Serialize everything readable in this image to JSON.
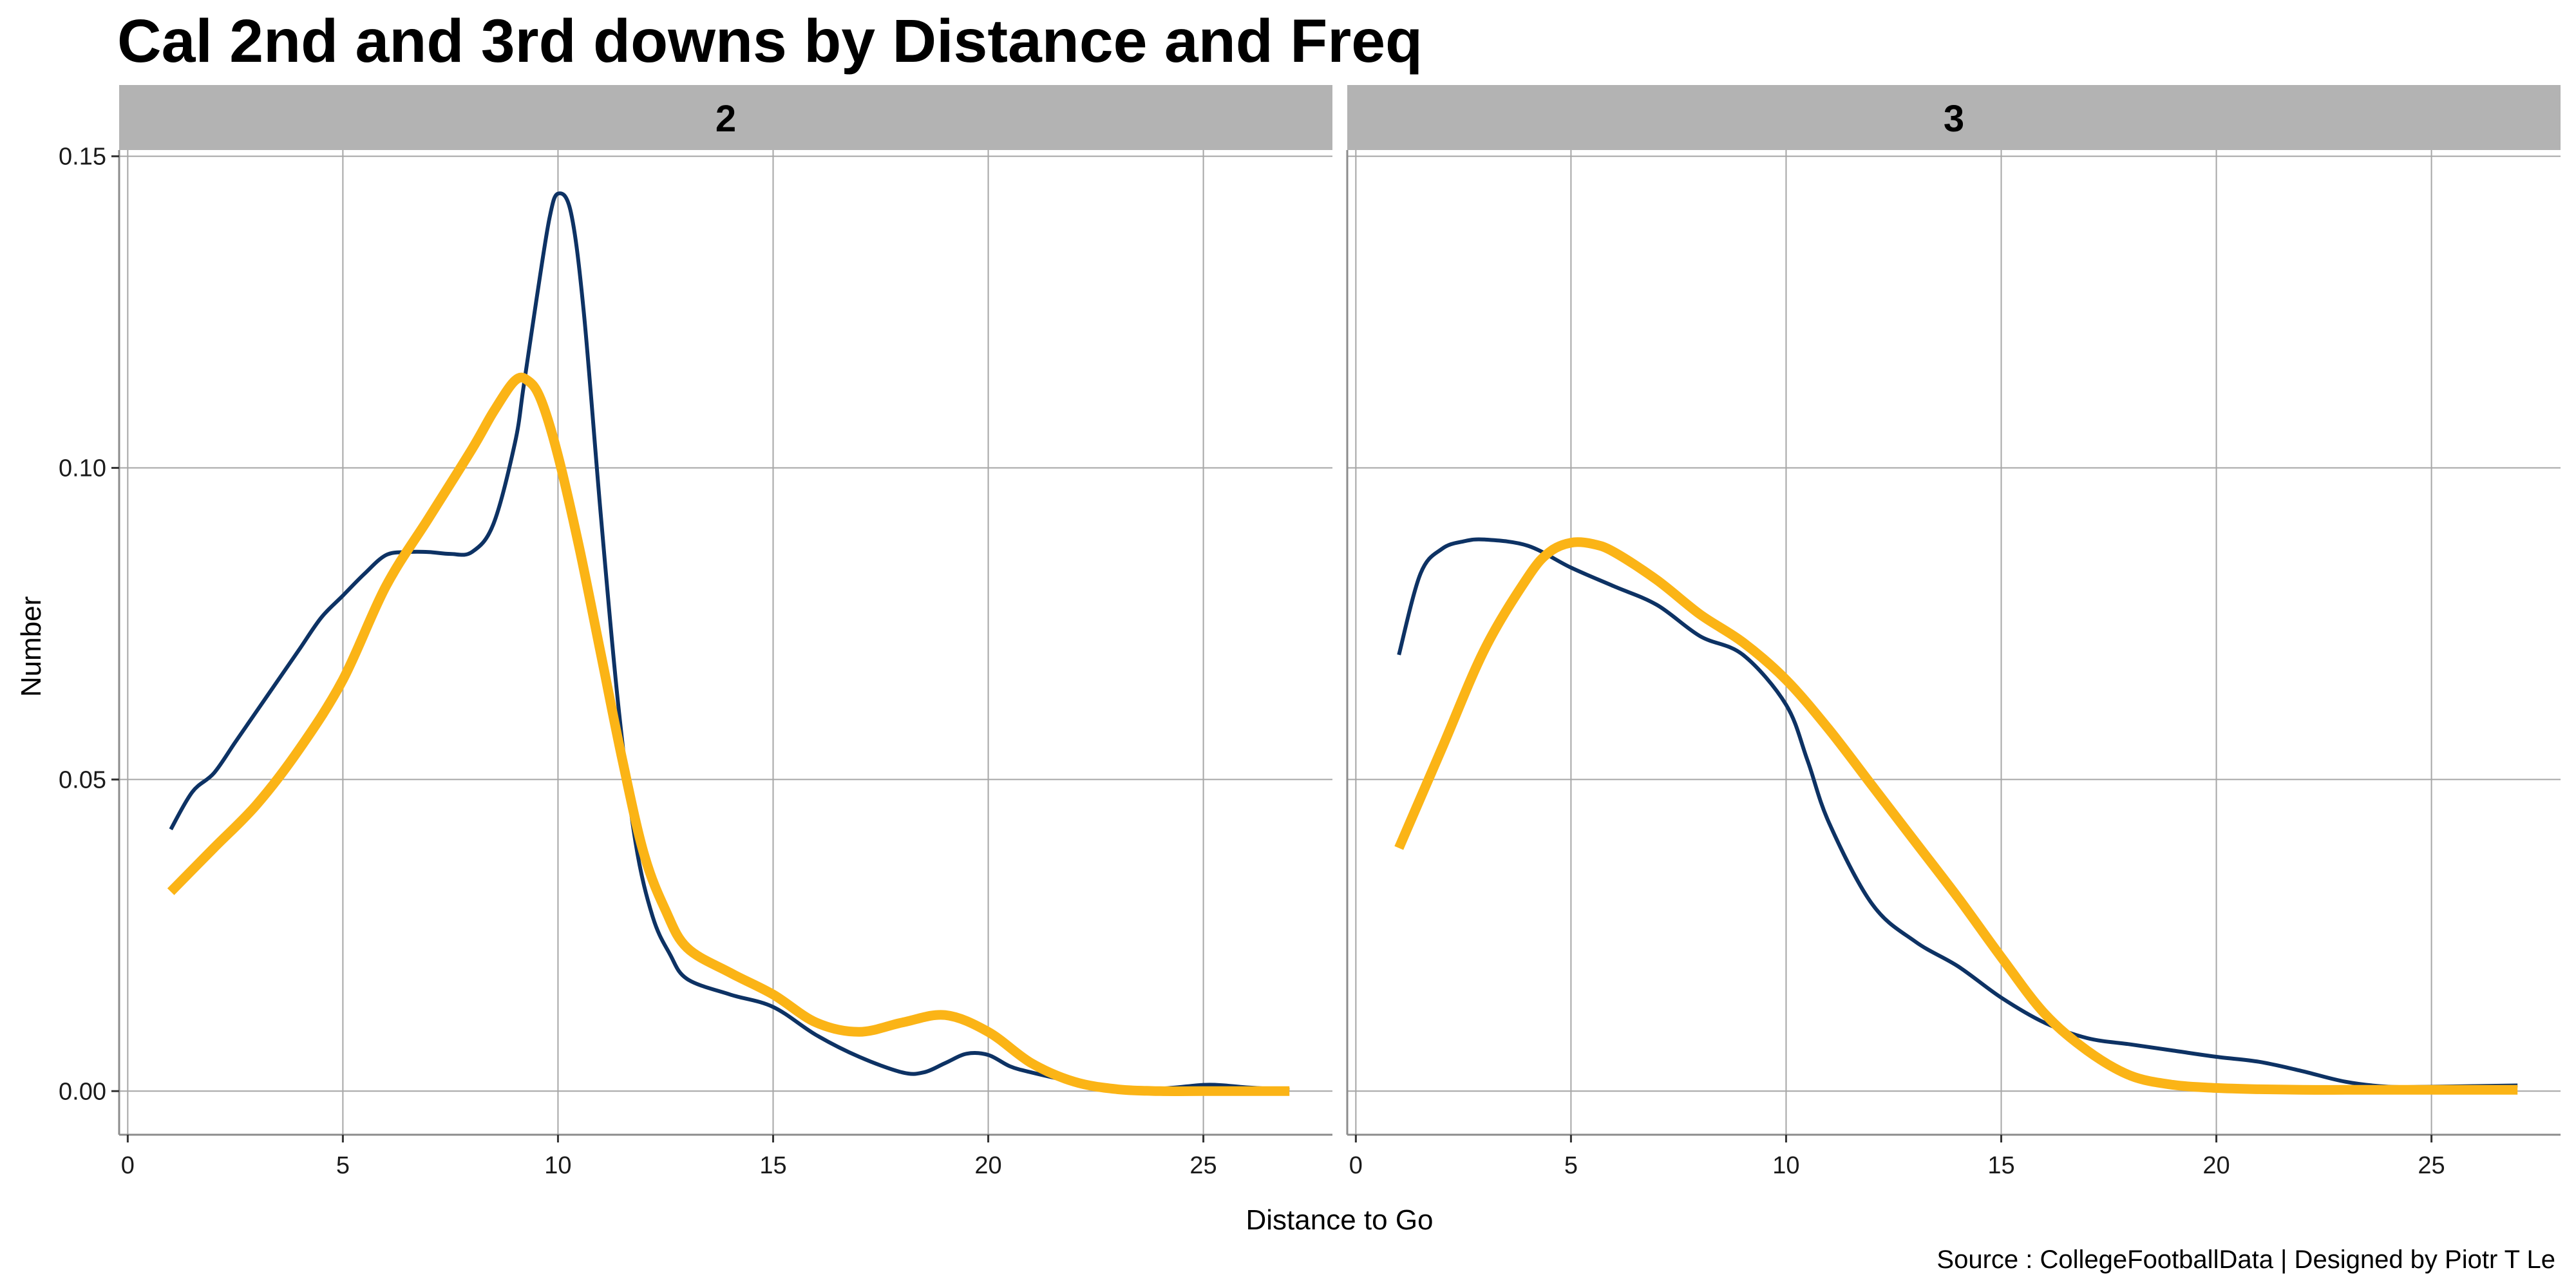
{
  "chart_data": {
    "type": "line",
    "title": "Cal 2nd and 3rd downs by Distance and Freq",
    "xlabel": "Distance to Go",
    "ylabel": "Number",
    "caption": "Source : CollegeFootballData | Designed by Piotr T Le",
    "xlim": [
      -0.2,
      28
    ],
    "ylim": [
      -0.007,
      0.151
    ],
    "x_ticks": [
      0,
      5,
      10,
      15,
      20,
      25
    ],
    "x_tick_labels": [
      "0",
      "5",
      "10",
      "15",
      "20",
      "25"
    ],
    "y_ticks": [
      0,
      0.05,
      0.1,
      0.15
    ],
    "y_tick_labels": [
      "0.00",
      "0.05",
      "0.10",
      "0.15"
    ],
    "colors": {
      "navy": "#0d3264",
      "gold": "#fbb416",
      "strip": "#b3b3b3",
      "grid": "#a6a6a6"
    },
    "panels": [
      {
        "label": "2",
        "series": [
          {
            "name": "navy",
            "color": "#0d3264",
            "width": 6,
            "x": [
              1,
              1.5,
              2,
              2.5,
              3,
              3.5,
              4,
              4.5,
              5,
              5.5,
              6,
              6.5,
              7,
              7.5,
              8,
              8.5,
              9,
              9.2,
              9.5,
              9.8,
              10,
              10.3,
              10.6,
              11,
              11.4,
              11.8,
              12.2,
              12.6,
              13,
              14,
              15,
              16,
              17,
              18,
              18.5,
              19,
              19.5,
              20,
              20.5,
              21,
              22,
              23,
              24,
              25,
              25.5,
              26,
              27
            ],
            "y": [
              0.042,
              0.048,
              0.051,
              0.056,
              0.061,
              0.066,
              0.071,
              0.076,
              0.0795,
              0.083,
              0.086,
              0.0865,
              0.0865,
              0.0862,
              0.0865,
              0.091,
              0.104,
              0.113,
              0.127,
              0.14,
              0.144,
              0.141,
              0.125,
              0.092,
              0.062,
              0.04,
              0.028,
              0.022,
              0.018,
              0.0155,
              0.0135,
              0.009,
              0.0055,
              0.003,
              0.003,
              0.0045,
              0.006,
              0.0058,
              0.004,
              0.003,
              0.0015,
              0.0006,
              0.0004,
              0.001,
              0.0009,
              0.0006,
              0.0002
            ]
          },
          {
            "name": "gold",
            "color": "#fbb416",
            "width": 15,
            "x": [
              1,
              2,
              3,
              4,
              5,
              6,
              7,
              8,
              8.5,
              9,
              9.3,
              9.6,
              10,
              10.5,
              11,
              11.5,
              12,
              12.5,
              13,
              14,
              15,
              16,
              17,
              18,
              19,
              20,
              21,
              22,
              23,
              24,
              25,
              26,
              27
            ],
            "y": [
              0.032,
              0.039,
              0.046,
              0.055,
              0.066,
              0.081,
              0.092,
              0.103,
              0.109,
              0.114,
              0.114,
              0.111,
              0.102,
              0.087,
              0.07,
              0.053,
              0.038,
              0.029,
              0.023,
              0.019,
              0.0155,
              0.011,
              0.0095,
              0.011,
              0.0122,
              0.0095,
              0.0045,
              0.0015,
              0.0003,
              0.0,
              0.0,
              0.0,
              0.0
            ]
          }
        ]
      },
      {
        "label": "3",
        "series": [
          {
            "name": "navy",
            "color": "#0d3264",
            "width": 6,
            "x": [
              1,
              1.5,
              2,
              2.5,
              3,
              4,
              5,
              6,
              7,
              8,
              9,
              10,
              10.5,
              11,
              12,
              13,
              14,
              15,
              16,
              17,
              18,
              19,
              20,
              21,
              22,
              23,
              24,
              25,
              26,
              27
            ],
            "y": [
              0.07,
              0.083,
              0.087,
              0.0882,
              0.0885,
              0.0875,
              0.084,
              0.081,
              0.078,
              0.073,
              0.07,
              0.062,
              0.053,
              0.043,
              0.03,
              0.024,
              0.02,
              0.015,
              0.011,
              0.0085,
              0.0075,
              0.0065,
              0.0055,
              0.0047,
              0.0032,
              0.0015,
              0.0007,
              0.0007,
              0.0008,
              0.0009
            ]
          },
          {
            "name": "gold",
            "color": "#fbb416",
            "width": 15,
            "x": [
              1,
              2,
              3,
              4,
              4.5,
              5,
              5.5,
              6,
              7,
              8,
              9,
              10,
              11,
              12,
              13,
              14,
              15,
              16,
              17,
              18,
              19,
              20,
              21,
              22,
              23,
              24,
              25,
              26,
              27
            ],
            "y": [
              0.039,
              0.055,
              0.071,
              0.0825,
              0.0865,
              0.088,
              0.0878,
              0.0865,
              0.082,
              0.0765,
              0.072,
              0.066,
              0.058,
              0.049,
              0.04,
              0.031,
              0.0215,
              0.0125,
              0.0065,
              0.0025,
              0.001,
              0.0005,
              0.0003,
              0.0002,
              0.0002,
              0.0002,
              0.0002,
              0.0002,
              0.0002
            ]
          }
        ]
      }
    ]
  }
}
